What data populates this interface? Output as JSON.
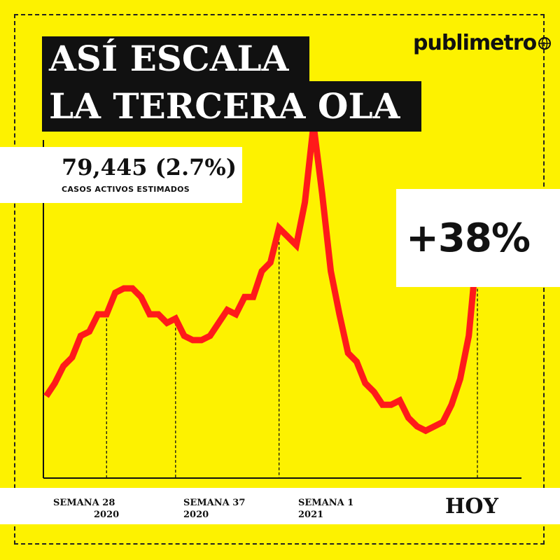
{
  "brand": {
    "logo_text": "publimetro",
    "logo_icon": "globe-icon"
  },
  "title": {
    "line1": "ASÍ ESCALA",
    "line2": "LA TERCERA OLA"
  },
  "stat": {
    "value": "79,445 (2.7%)",
    "label": "CASOS ACTIVOS  ESTIMADOS"
  },
  "change": {
    "label": "+38%"
  },
  "x_labels": [
    {
      "line1": "SEMANA 28",
      "line2": "2020"
    },
    {
      "line1": "SEMANA 37",
      "line2": "2020"
    },
    {
      "line1": "SEMANA 1",
      "line2": "2021"
    }
  ],
  "today_label": "HOY",
  "colors": {
    "background": "#fdf200",
    "line": "#ff1a1a",
    "text": "#111111"
  },
  "chart_data": {
    "type": "line",
    "title": "ASÍ ESCALA LA TERCERA OLA",
    "x_ticks": [
      "SEMANA 28 2020",
      "SEMANA 37 2020",
      "SEMANA 1 2021",
      "HOY"
    ],
    "y_axis_labeled": false,
    "values": [
      19,
      22,
      26,
      28,
      33,
      34,
      38,
      38,
      43,
      44,
      44,
      42,
      38,
      38,
      36,
      37,
      33,
      32,
      32,
      33,
      36,
      39,
      38,
      42,
      42,
      48,
      50,
      58,
      56,
      54,
      64,
      82,
      66,
      48,
      38,
      29,
      27,
      22,
      20,
      17,
      17,
      18,
      14,
      12,
      11,
      12,
      13,
      17,
      23,
      33,
      54
    ],
    "highlight_ticks_index": [
      7,
      15,
      27,
      50
    ],
    "annotation": "+38%"
  }
}
